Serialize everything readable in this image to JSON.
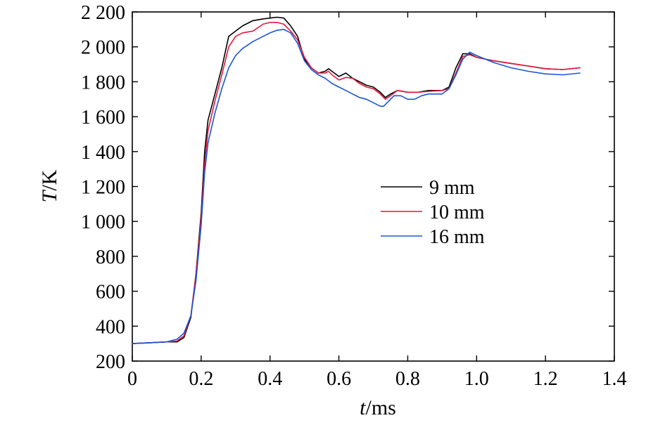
{
  "chart_data": {
    "type": "line",
    "xlabel_italic": "t",
    "xlabel_unit": "/ms",
    "ylabel_italic": "T",
    "ylabel_unit": "/K",
    "xlim": [
      0,
      1.4
    ],
    "ylim": [
      200,
      2200
    ],
    "x_ticks": [
      0,
      0.2,
      0.4,
      0.6,
      0.8,
      1.0,
      1.2,
      1.4
    ],
    "x_tick_labels": [
      "0",
      "0.2",
      "0.4",
      "0.6",
      "0.8",
      "1.0",
      "1.2",
      "1.4"
    ],
    "y_ticks": [
      200,
      400,
      600,
      800,
      1000,
      1200,
      1400,
      1600,
      1800,
      2000,
      2200
    ],
    "y_tick_labels": [
      "200",
      "400",
      "600",
      "800",
      "1 000",
      "1 200",
      "1 400",
      "1 600",
      "1 800",
      "2 000",
      "2 200"
    ],
    "grid": false,
    "legend_position": "center-right",
    "series": [
      {
        "name": "9 mm",
        "color": "#000000",
        "x": [
          0,
          0.05,
          0.1,
          0.13,
          0.15,
          0.17,
          0.185,
          0.2,
          0.21,
          0.22,
          0.24,
          0.26,
          0.28,
          0.3,
          0.32,
          0.35,
          0.38,
          0.4,
          0.42,
          0.44,
          0.46,
          0.48,
          0.5,
          0.52,
          0.54,
          0.56,
          0.57,
          0.58,
          0.6,
          0.62,
          0.64,
          0.66,
          0.68,
          0.7,
          0.72,
          0.735,
          0.75,
          0.77,
          0.8,
          0.83,
          0.86,
          0.9,
          0.92,
          0.94,
          0.96,
          0.98,
          1.0,
          1.05,
          1.1,
          1.15,
          1.2,
          1.25,
          1.3
        ],
        "y": [
          300,
          305,
          310,
          310,
          335,
          450,
          700,
          1050,
          1400,
          1580,
          1730,
          1880,
          2060,
          2090,
          2120,
          2150,
          2160,
          2165,
          2170,
          2165,
          2120,
          2060,
          1930,
          1880,
          1850,
          1860,
          1875,
          1860,
          1830,
          1850,
          1820,
          1800,
          1780,
          1770,
          1740,
          1710,
          1730,
          1750,
          1740,
          1740,
          1750,
          1750,
          1770,
          1880,
          1960,
          1960,
          1940,
          1920,
          1905,
          1890,
          1875,
          1870,
          1880
        ]
      },
      {
        "name": "10 mm",
        "color": "#e8163c",
        "x": [
          0,
          0.05,
          0.1,
          0.13,
          0.15,
          0.17,
          0.185,
          0.2,
          0.21,
          0.22,
          0.24,
          0.26,
          0.28,
          0.3,
          0.32,
          0.35,
          0.38,
          0.4,
          0.42,
          0.44,
          0.46,
          0.48,
          0.5,
          0.52,
          0.54,
          0.56,
          0.57,
          0.58,
          0.6,
          0.62,
          0.64,
          0.66,
          0.68,
          0.7,
          0.72,
          0.735,
          0.75,
          0.77,
          0.8,
          0.83,
          0.86,
          0.9,
          0.92,
          0.94,
          0.96,
          0.98,
          1.0,
          1.05,
          1.1,
          1.15,
          1.2,
          1.25,
          1.3
        ],
        "y": [
          300,
          305,
          310,
          315,
          345,
          460,
          690,
          1020,
          1330,
          1520,
          1690,
          1840,
          2000,
          2060,
          2080,
          2090,
          2130,
          2140,
          2140,
          2130,
          2090,
          2040,
          1940,
          1880,
          1850,
          1850,
          1860,
          1840,
          1810,
          1825,
          1820,
          1790,
          1770,
          1760,
          1730,
          1700,
          1720,
          1750,
          1740,
          1740,
          1745,
          1750,
          1760,
          1850,
          1945,
          1955,
          1940,
          1920,
          1905,
          1890,
          1875,
          1870,
          1880
        ]
      },
      {
        "name": "16 mm",
        "color": "#1a56d6",
        "x": [
          0,
          0.05,
          0.1,
          0.13,
          0.15,
          0.17,
          0.185,
          0.2,
          0.21,
          0.22,
          0.24,
          0.26,
          0.28,
          0.3,
          0.32,
          0.35,
          0.38,
          0.4,
          0.42,
          0.44,
          0.46,
          0.48,
          0.5,
          0.52,
          0.54,
          0.56,
          0.58,
          0.6,
          0.62,
          0.64,
          0.66,
          0.68,
          0.7,
          0.72,
          0.73,
          0.74,
          0.76,
          0.78,
          0.8,
          0.82,
          0.84,
          0.86,
          0.9,
          0.92,
          0.94,
          0.96,
          0.98,
          1.0,
          1.05,
          1.1,
          1.15,
          1.2,
          1.25,
          1.3
        ],
        "y": [
          300,
          305,
          310,
          325,
          360,
          460,
          660,
          980,
          1280,
          1450,
          1620,
          1760,
          1880,
          1950,
          1990,
          2030,
          2060,
          2080,
          2095,
          2100,
          2080,
          2020,
          1920,
          1870,
          1840,
          1820,
          1790,
          1770,
          1750,
          1730,
          1710,
          1700,
          1680,
          1660,
          1660,
          1680,
          1720,
          1720,
          1700,
          1700,
          1720,
          1730,
          1730,
          1760,
          1840,
          1930,
          1970,
          1950,
          1910,
          1880,
          1860,
          1845,
          1840,
          1850
        ]
      }
    ]
  }
}
